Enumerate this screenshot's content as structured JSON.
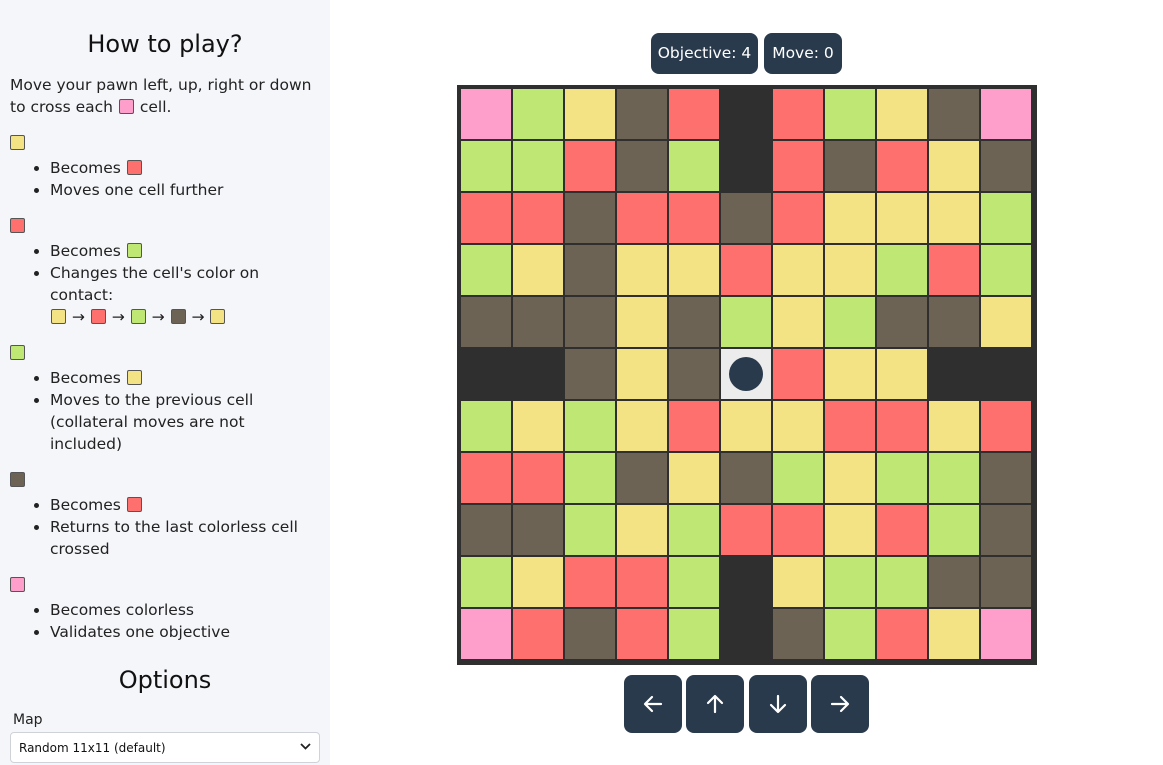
{
  "colors": {
    "Y": "#f3e384",
    "R": "#fe706d",
    "G": "#bfe774",
    "B": "#6c6355",
    "P": "#fe9fcb",
    "K": "#2f2f2f",
    "W": "#ececec",
    "pawn": "#293a4d",
    "accent": "#293a4d"
  },
  "sidebar": {
    "title": "How to play?",
    "intro_before": "Move your pawn left, up, right or down to cross each",
    "intro_after": "cell.",
    "rules": [
      {
        "color": "Y",
        "becomes_label": "Becomes",
        "becomes_color": "R",
        "text": "Moves one cell further"
      },
      {
        "color": "R",
        "becomes_label": "Becomes",
        "becomes_color": "G",
        "text": "Changes the cell's color on contact:",
        "cycle": [
          "Y",
          "R",
          "G",
          "B",
          "Y"
        ]
      },
      {
        "color": "G",
        "becomes_label": "Becomes",
        "becomes_color": "Y",
        "text": "Moves to the previous cell (collateral moves are not included)"
      },
      {
        "color": "B",
        "becomes_label": "Becomes",
        "becomes_color": "R",
        "text": "Returns to the last colorless cell crossed"
      },
      {
        "color": "P",
        "becomes_label": "Becomes colorless",
        "becomes_color": null,
        "text": "Validates one objective"
      }
    ],
    "options_title": "Options",
    "map_label": "Map",
    "map_selected": "Random 11x11 (default)"
  },
  "status": {
    "objective": "Objective: 4",
    "move": "Move: 0"
  },
  "board": {
    "size": 11,
    "grid": [
      "PGYBRKRGYBP",
      "GGRBGKRBRYB",
      "RRBRRBRYYYG",
      "GYBYYRYYGRG",
      "BBBYBGYGBBY",
      "KKBYBWRYYKK",
      "GYGYRYYRRYR",
      "RRGBYBGYGGB",
      "BBGYGRRYRGB",
      "GYRRGKYGGBB",
      "PRBRGKBGRYP"
    ],
    "pawn": [
      5,
      5
    ]
  },
  "controls": {
    "left": "arrow-left-icon",
    "up": "arrow-up-icon",
    "down": "arrow-down-icon",
    "right": "arrow-right-icon"
  }
}
